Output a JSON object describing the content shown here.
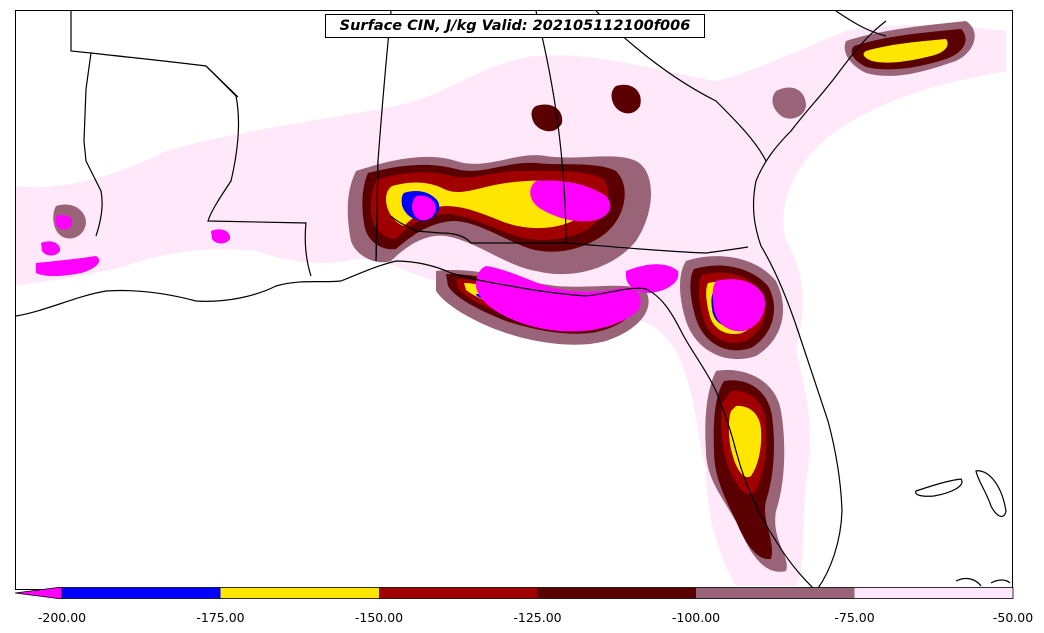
{
  "title": "Surface CIN, J/kg Valid: 202105112100f006",
  "colorbar": {
    "extend": "min",
    "bins": [
      {
        "from": -200,
        "to": -175,
        "color": "#0000ff"
      },
      {
        "from": -175,
        "to": -150,
        "color": "#ffe600"
      },
      {
        "from": -150,
        "to": -125,
        "color": "#a00000"
      },
      {
        "from": -125,
        "to": -100,
        "color": "#5a0000"
      },
      {
        "from": -100,
        "to": -75,
        "color": "#9a6478"
      },
      {
        "from": -75,
        "to": -50,
        "color": "#ffe6fa"
      }
    ],
    "below_min_color": "#ff00ff",
    "tick_labels": [
      "-200.00",
      "-175.00",
      "-150.00",
      "-125.00",
      "-100.00",
      "-75.00",
      "-50.00"
    ]
  }
}
